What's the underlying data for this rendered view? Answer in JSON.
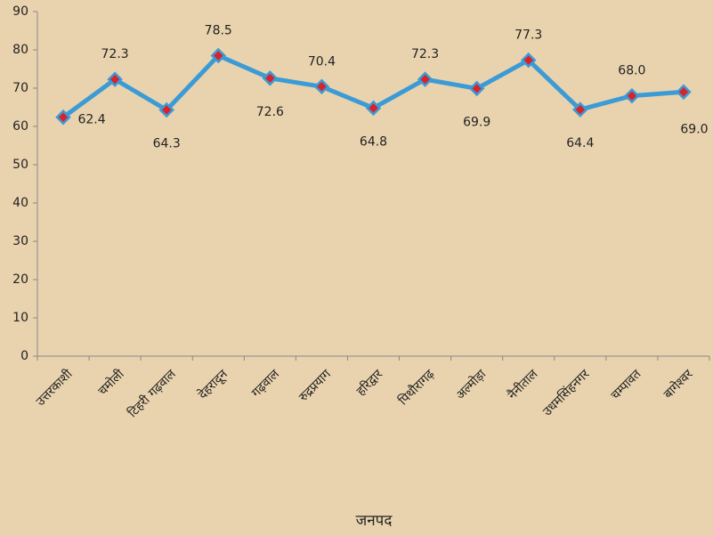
{
  "chart_data": {
    "type": "line",
    "x_label": "जनपद",
    "categories": [
      "उत्तरकाशी",
      "चमोली",
      "टिहरी गढ़वाल",
      "देहरादून",
      "गढ़वाल",
      "रुद्रप्रयाग",
      "हरिद्वार",
      "पिथौरागढ़",
      "अल्मोड़ा",
      "नैनीताल",
      "उधमसिंहनगर",
      "चम्पावत",
      "बागेश्वर"
    ],
    "series": [
      {
        "name": "",
        "color": "#3b9bd6",
        "marker_color": "#d8232a",
        "values": [
          62.4,
          72.3,
          64.3,
          78.5,
          72.6,
          70.4,
          64.8,
          72.3,
          69.9,
          77.3,
          64.4,
          68.0,
          69.0
        ],
        "value_labels": [
          "62.4",
          "72.3",
          "64.3",
          "78.5",
          "72.6",
          "70.4",
          "64.8",
          "72.3",
          "69.9",
          "77.3",
          "64.4",
          "68.0",
          "69.0"
        ]
      }
    ],
    "ylim": [
      0,
      90
    ],
    "yticks": [
      0,
      10,
      20,
      30,
      40,
      50,
      60,
      70,
      80,
      90
    ],
    "grid": false
  }
}
